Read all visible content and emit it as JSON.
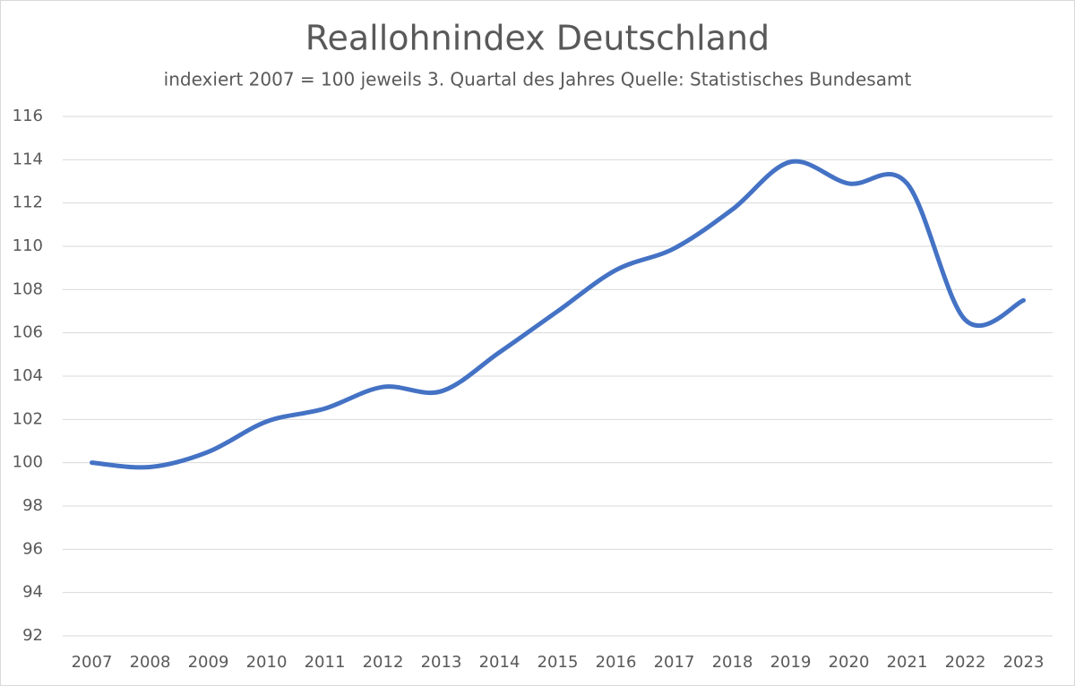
{
  "chart_data": {
    "type": "line",
    "title": "Reallohnindex Deutschland",
    "subtitle": "indexiert 2007 = 100 jeweils 3. Quartal des Jahres Quelle: Statistisches Bundesamt",
    "categories": [
      "2007",
      "2008",
      "2009",
      "2010",
      "2011",
      "2012",
      "2013",
      "2014",
      "2015",
      "2016",
      "2017",
      "2018",
      "2019",
      "2020",
      "2021",
      "2022",
      "2023"
    ],
    "series": [
      {
        "name": "Reallohnindex",
        "color": "#4472c4",
        "values": [
          100,
          99.8,
          100.5,
          101.9,
          102.5,
          103.5,
          103.3,
          105.1,
          107.0,
          108.9,
          109.9,
          111.7,
          113.9,
          112.9,
          112.9,
          106.6,
          107.5
        ]
      }
    ],
    "ylim": [
      92,
      116
    ],
    "yticks": [
      92,
      94,
      96,
      98,
      100,
      102,
      104,
      106,
      108,
      110,
      112,
      114,
      116
    ],
    "grid": true,
    "smooth": true
  }
}
